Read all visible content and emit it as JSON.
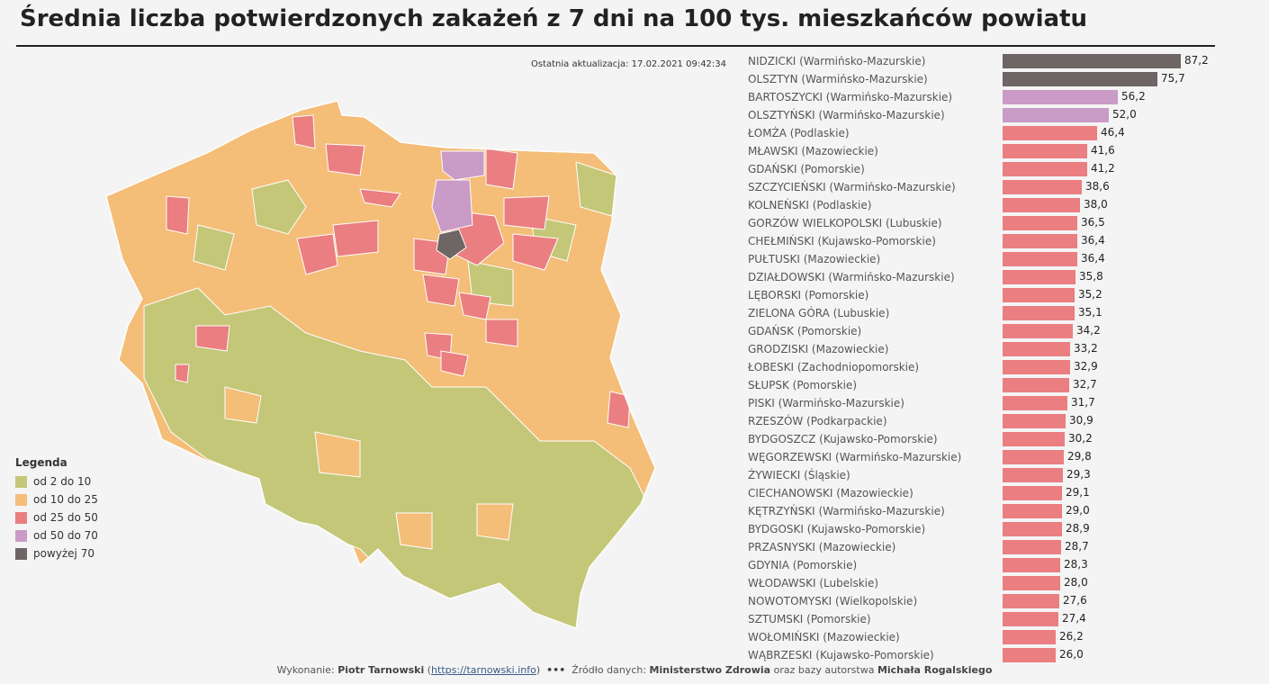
{
  "title": "Średnia liczba potwierdzonych zakażeń z 7 dni na 100 tys. mieszkańców powiatu",
  "last_update": "Ostatnia aktualizacja: 17.02.2021 09:42:34",
  "legend": {
    "title": "Legenda",
    "items": [
      {
        "label": "od 2 do 10",
        "color": "#c3c777"
      },
      {
        "label": "od 10 do 25",
        "color": "#f4bd78"
      },
      {
        "label": "od 25 do 50",
        "color": "#ea7e80"
      },
      {
        "label": "od 50 do 70",
        "color": "#c99bc6"
      },
      {
        "label": "powyżej 70",
        "color": "#6e6565"
      }
    ]
  },
  "colors": {
    "above70": "#6e6565",
    "r50to70": "#c99bc6",
    "r25to50": "#ea7e80",
    "r10to25": "#f4bd78",
    "r2to10": "#c3c777",
    "background": "#f4f4f4"
  },
  "chart_data": [
    {
      "type": "map",
      "regions": "powiaty",
      "highlighted_categories": [
        "od 2 do 10",
        "od 10 do 25",
        "od 25 do 50",
        "od 50 do 70",
        "powyżej 70"
      ]
    },
    {
      "type": "bar",
      "orientation": "horizontal",
      "xlim": [
        0,
        87.2
      ],
      "categories": [
        "NIDZICKI (Warmińsko-Mazurskie)",
        "OLSZTYN (Warmińsko-Mazurskie)",
        "BARTOSZYCKI (Warmińsko-Mazurskie)",
        "OLSZTYŃSKI (Warmińsko-Mazurskie)",
        "ŁOMŻA (Podlaskie)",
        "MŁAWSKI (Mazowieckie)",
        "GDAŃSKI (Pomorskie)",
        "SZCZYCIEŃSKI (Warmińsko-Mazurskie)",
        "KOLNEŃSKI (Podlaskie)",
        "GORZÓW WIELKOPOLSKI (Lubuskie)",
        "CHEŁMIŃSKI (Kujawsko-Pomorskie)",
        "PUŁTUSKI (Mazowieckie)",
        "DZIAŁDOWSKI (Warmińsko-Mazurskie)",
        "LĘBORSKI (Pomorskie)",
        "ZIELONA GÓRA (Lubuskie)",
        "GDAŃSK (Pomorskie)",
        "GRODZISKI (Mazowieckie)",
        "ŁOBESKI (Zachodniopomorskie)",
        "SŁUPSK (Pomorskie)",
        "PISKI (Warmińsko-Mazurskie)",
        "RZESZÓW (Podkarpackie)",
        "BYDGOSZCZ (Kujawsko-Pomorskie)",
        "WĘGORZEWSKI (Warmińsko-Mazurskie)",
        "ŻYWIECKI (Śląskie)",
        "CIECHANOWSKI (Mazowieckie)",
        "KĘTRZYŃSKI (Warmińsko-Mazurskie)",
        "BYDGOSKI (Kujawsko-Pomorskie)",
        "PRZASNYSKI (Mazowieckie)",
        "GDYNIA (Pomorskie)",
        "WŁODAWSKI (Lubelskie)",
        "NOWOTOMYSKI (Wielkopolskie)",
        "SZTUMSKI (Pomorskie)",
        "WOŁOMIŃSKI (Mazowieckie)",
        "WĄBRZESKI (Kujawsko-Pomorskie)"
      ],
      "values": [
        87.2,
        75.7,
        56.2,
        52.0,
        46.4,
        41.6,
        41.2,
        38.6,
        38.0,
        36.5,
        36.4,
        36.4,
        35.8,
        35.2,
        35.1,
        34.2,
        33.2,
        32.9,
        32.7,
        31.7,
        30.9,
        30.2,
        29.8,
        29.3,
        29.1,
        29.0,
        28.9,
        28.7,
        28.3,
        28.0,
        27.6,
        27.4,
        26.2,
        26.0
      ]
    }
  ],
  "footer": {
    "made_by_label": "Wykonanie:",
    "author": "Piotr Tarnowski",
    "link": "https://tarnowski.info",
    "separator": "•••",
    "source_label": "Źródło danych:",
    "source_ministry": "Ministerstwo Zdrowia",
    "source_middle": "oraz bazy autorstwa",
    "source_author": "Michała Rogalskiego"
  }
}
